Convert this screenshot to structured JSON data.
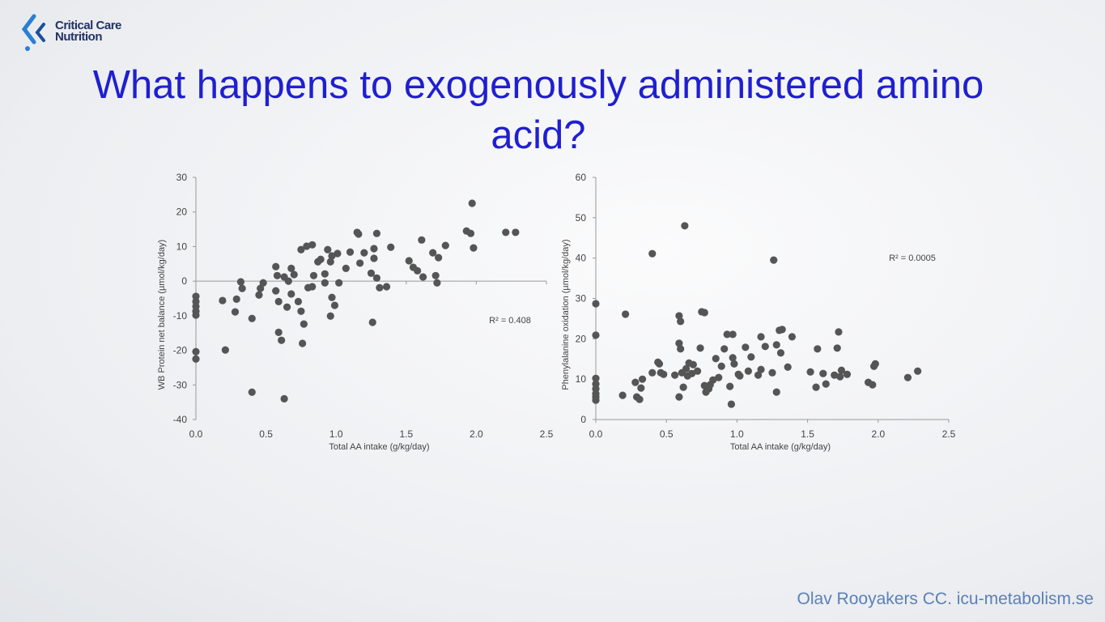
{
  "logo": [
    "Critical Care",
    "Nutrition"
  ],
  "title": "What happens to exogenously administered amino acid?",
  "footer": "Olav Rooyakers CC. icu-metabolism.se",
  "chart_data": [
    {
      "type": "scatter",
      "color": "#555555",
      "y_label": "WB Protein net balance (µmol/kg/day)",
      "x_label": "Total AA intake (g/kg/day)",
      "annotation": "R² = 0.408",
      "xlim": [
        0,
        2.5
      ],
      "ylim": [
        -40,
        30
      ],
      "xticks": [
        {
          "value": 0,
          "label": "0.0"
        },
        0.5,
        {
          "value": 1,
          "label": "1.0"
        },
        1.5,
        {
          "value": 2,
          "label": "2.0"
        },
        2.5
      ],
      "yticks": [
        -40,
        -30,
        -20,
        -10,
        0,
        10,
        20,
        30
      ],
      "x": [
        0,
        0,
        0,
        0,
        0,
        0,
        0,
        0.19,
        0.21,
        0.28,
        0.29,
        0.32,
        0.33,
        0.4,
        0.4,
        0.45,
        0.46,
        0.48,
        0.57,
        0.58,
        0.59,
        0.57,
        0.59,
        0.61,
        0.63,
        0.63,
        0.65,
        0.66,
        0.68,
        0.68,
        0.7,
        0.73,
        0.75,
        0.75,
        0.76,
        0.77,
        0.79,
        0.8,
        0.83,
        0.83,
        0.84,
        0.87,
        0.89,
        0.92,
        0.94,
        0.96,
        0.96,
        0.97,
        0.97,
        0.99,
        1.01,
        1.02,
        1.07,
        1.1,
        1.15,
        1.16,
        1.17,
        1.2,
        1.25,
        1.26,
        1.27,
        1.27,
        1.29,
        1.29,
        1.31,
        1.36,
        1.39,
        1.52,
        1.55,
        1.58,
        1.61,
        1.62,
        1.69,
        1.71,
        1.72,
        1.73,
        1.78,
        1.93,
        1.96,
        1.97,
        1.98,
        2.21,
        2.28,
        0.92
      ],
      "values": [
        -4.4,
        -5.9,
        -7.3,
        -8.7,
        -9.8,
        -20.4,
        -22.5,
        -5.6,
        -19.9,
        -8.9,
        -5.2,
        -0.2,
        -2.1,
        -10.8,
        -32.1,
        -4,
        -2.1,
        -0.5,
        4.2,
        1.6,
        -14.8,
        -2.8,
        -5.9,
        -17.1,
        -34,
        1.2,
        -7.5,
        0,
        3.7,
        -3.7,
        1.9,
        -5.9,
        9.1,
        -8.7,
        -18,
        -12.4,
        10.1,
        -1.9,
        10.5,
        -1.6,
        1.6,
        5.6,
        6.3,
        2.1,
        9.1,
        5.6,
        -10.1,
        7.3,
        -4.7,
        -7,
        8,
        -0.5,
        3.7,
        8.4,
        14.1,
        13.6,
        5.2,
        8.2,
        2.3,
        -11.9,
        6.6,
        9.4,
        13.8,
        0.9,
        -1.9,
        -1.6,
        9.8,
        5.9,
        4,
        3,
        11.9,
        1.2,
        8.2,
        1.6,
        -0.5,
        6.8,
        10.3,
        14.5,
        13.8,
        22.5,
        9.6,
        14.1,
        14.1,
        -0.5
      ]
    },
    {
      "type": "scatter",
      "color": "#555555",
      "y_label": "Phenylalanine oxidation (µmol/kg/day)",
      "x_label": "Total AA intake (g/kg/day)",
      "annotation": "R² = 0.0005",
      "xlim": [
        0,
        2.5
      ],
      "ylim": [
        0,
        60
      ],
      "xticks": [
        {
          "value": 0,
          "label": "0.0"
        },
        0.5,
        {
          "value": 1,
          "label": "1.0"
        },
        1.5,
        {
          "value": 2,
          "label": "2.0"
        },
        2.5
      ],
      "yticks": [
        0,
        10,
        20,
        30,
        40,
        50,
        60
      ],
      "x": [
        0,
        0,
        0,
        0,
        0,
        0,
        0,
        0,
        0.19,
        0.21,
        0.28,
        0.29,
        0.31,
        0.33,
        0.32,
        0.4,
        0.4,
        0.44,
        0.45,
        0.46,
        0.48,
        0.56,
        0.59,
        0.59,
        0.59,
        0.6,
        0.6,
        0.61,
        0.62,
        0.63,
        0.64,
        0.65,
        0.66,
        0.68,
        0.69,
        0.72,
        0.74,
        0.75,
        0.77,
        0.77,
        0.78,
        0.8,
        0.81,
        0.83,
        0.85,
        0.87,
        0.89,
        0.91,
        0.93,
        0.95,
        0.96,
        0.97,
        0.97,
        0.98,
        1.01,
        1.02,
        1.06,
        1.08,
        1.1,
        1.15,
        1.17,
        1.17,
        1.2,
        1.25,
        1.26,
        1.28,
        1.28,
        1.3,
        1.31,
        1.32,
        1.36,
        1.39,
        1.52,
        1.56,
        1.57,
        1.61,
        1.63,
        1.69,
        1.71,
        1.72,
        1.73,
        1.74,
        1.78,
        1.93,
        1.96,
        1.97,
        1.98,
        2.21,
        2.28
      ],
      "values": [
        28.7,
        20.9,
        10.2,
        8.8,
        7.6,
        6.4,
        5.6,
        4.8,
        6,
        26.1,
        9.2,
        5.6,
        5,
        10,
        7.8,
        41.1,
        11.6,
        14.2,
        13.8,
        11.6,
        11.2,
        11,
        25.7,
        18.9,
        5.6,
        17.5,
        24.3,
        11.6,
        8,
        48,
        12.6,
        10.8,
        14,
        11.4,
        13.6,
        12,
        17.7,
        26.7,
        26.5,
        8.4,
        6.8,
        7.6,
        8.6,
        9.8,
        15.1,
        10.4,
        13.2,
        17.5,
        21.1,
        8.2,
        3.8,
        15.3,
        21.1,
        13.8,
        11.2,
        10.8,
        17.9,
        12,
        15.5,
        11,
        12.4,
        20.5,
        18.1,
        11.6,
        39.5,
        6.8,
        18.5,
        22.1,
        16.5,
        22.3,
        13,
        20.5,
        11.8,
        8,
        17.5,
        11.4,
        8.8,
        11,
        17.7,
        21.7,
        10.6,
        12.2,
        11.2,
        9.2,
        8.6,
        13.2,
        13.8,
        10.4,
        12
      ]
    }
  ]
}
